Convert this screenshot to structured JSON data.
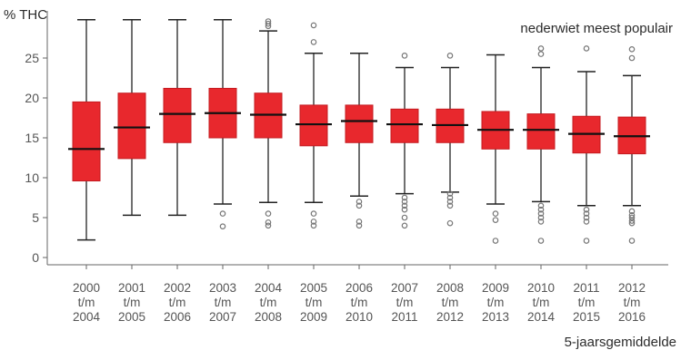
{
  "chart_data": {
    "type": "box",
    "ylabel": "% THC",
    "annotation": "nederwiet meest populair",
    "xlabel": "5-jaarsgemiddelde",
    "ylim": [
      -1,
      30
    ],
    "yticks": [
      0,
      5,
      10,
      15,
      20,
      25
    ],
    "grid": false,
    "box_color": "#e8282d",
    "categories": [
      [
        "2000",
        "t/m",
        "2004"
      ],
      [
        "2001",
        "t/m",
        "2005"
      ],
      [
        "2002",
        "t/m",
        "2006"
      ],
      [
        "2003",
        "t/m",
        "2007"
      ],
      [
        "2004",
        "t/m",
        "2008"
      ],
      [
        "2005",
        "t/m",
        "2009"
      ],
      [
        "2006",
        "t/m",
        "2010"
      ],
      [
        "2007",
        "t/m",
        "2011"
      ],
      [
        "2008",
        "t/m",
        "2012"
      ],
      [
        "2009",
        "t/m",
        "2013"
      ],
      [
        "2010",
        "t/m",
        "2014"
      ],
      [
        "2011",
        "t/m",
        "2015"
      ],
      [
        "2012",
        "t/m",
        "2016"
      ]
    ],
    "boxes": [
      {
        "min": 2.2,
        "q1": 9.6,
        "median": 13.6,
        "q3": 19.5,
        "max": 29.8,
        "outliers": []
      },
      {
        "min": 5.3,
        "q1": 12.4,
        "median": 16.3,
        "q3": 20.6,
        "max": 29.8,
        "outliers": []
      },
      {
        "min": 5.3,
        "q1": 14.4,
        "median": 18.0,
        "q3": 21.2,
        "max": 29.8,
        "outliers": []
      },
      {
        "min": 6.7,
        "q1": 15.0,
        "median": 18.1,
        "q3": 21.2,
        "max": 29.8,
        "outliers": [
          5.5,
          3.9
        ]
      },
      {
        "min": 6.9,
        "q1": 15.0,
        "median": 17.9,
        "q3": 20.6,
        "max": 28.4,
        "outliers": [
          29.6,
          29.3,
          29.0,
          5.5,
          4.4,
          4.0
        ]
      },
      {
        "min": 6.9,
        "q1": 14.0,
        "median": 16.7,
        "q3": 19.1,
        "max": 25.6,
        "outliers": [
          29.1,
          27.0,
          5.5,
          4.5,
          4.0
        ]
      },
      {
        "min": 7.7,
        "q1": 14.4,
        "median": 17.1,
        "q3": 19.1,
        "max": 25.6,
        "outliers": [
          7.0,
          6.5,
          4.5,
          4.0
        ]
      },
      {
        "min": 8.0,
        "q1": 14.4,
        "median": 16.7,
        "q3": 18.6,
        "max": 23.8,
        "outliers": [
          25.3,
          7.5,
          7.0,
          6.5,
          6.0,
          5.0,
          4.0
        ]
      },
      {
        "min": 8.2,
        "q1": 14.4,
        "median": 16.6,
        "q3": 18.6,
        "max": 23.8,
        "outliers": [
          25.3,
          8.0,
          7.5,
          7.0,
          6.5,
          4.3
        ]
      },
      {
        "min": 6.7,
        "q1": 13.6,
        "median": 16.0,
        "q3": 18.3,
        "max": 25.4,
        "outliers": [
          5.5,
          4.7,
          2.1
        ]
      },
      {
        "min": 7.0,
        "q1": 13.6,
        "median": 16.0,
        "q3": 18.0,
        "max": 23.8,
        "outliers": [
          26.2,
          25.5,
          6.5,
          6.0,
          5.5,
          5.0,
          4.5,
          2.1
        ]
      },
      {
        "min": 6.5,
        "q1": 13.1,
        "median": 15.5,
        "q3": 17.7,
        "max": 23.3,
        "outliers": [
          26.2,
          6.0,
          5.5,
          5.0,
          4.5,
          2.1
        ]
      },
      {
        "min": 6.5,
        "q1": 13.0,
        "median": 15.2,
        "q3": 17.6,
        "max": 22.8,
        "outliers": [
          26.1,
          25.0,
          5.8,
          5.3,
          5.0,
          4.6,
          4.3,
          2.1
        ]
      }
    ]
  }
}
